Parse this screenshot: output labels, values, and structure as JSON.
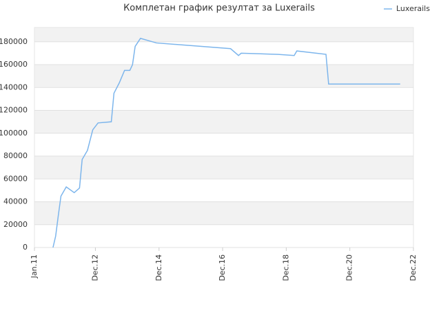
{
  "chart_data": {
    "type": "line",
    "title": "Комплетан график резултат за Luxerails",
    "x": [
      "2011-08",
      "2011-09",
      "2011-10",
      "2011-11",
      "2012-01",
      "2012-04",
      "2012-06",
      "2012-07",
      "2012-09",
      "2012-11",
      "2013-01",
      "2013-06",
      "2013-07",
      "2013-09",
      "2013-11",
      "2014-01",
      "2014-02",
      "2014-03",
      "2014-05",
      "2014-11",
      "2017-03",
      "2017-06",
      "2017-07",
      "2018-09",
      "2019-03",
      "2019-04",
      "2020-03",
      "2020-04",
      "2022-07"
    ],
    "series": [
      {
        "name": "Luxerails",
        "color": "#7cb5ec",
        "values": [
          0,
          10000,
          28000,
          45000,
          53000,
          48000,
          52000,
          77000,
          85000,
          103000,
          109000,
          110000,
          135000,
          144000,
          155000,
          155000,
          160000,
          176000,
          183000,
          179000,
          174000,
          168000,
          170000,
          169000,
          168000,
          172000,
          169000,
          143000,
          143000
        ]
      }
    ],
    "xlim": [
      "2011-01",
      "2022-12"
    ],
    "xticks": [
      {
        "value": "2011-01",
        "label": "Jan.11"
      },
      {
        "value": "2012-12",
        "label": "Dec.12"
      },
      {
        "value": "2014-12",
        "label": "Dec.14"
      },
      {
        "value": "2016-12",
        "label": "Dec.16"
      },
      {
        "value": "2018-12",
        "label": "Dec.18"
      },
      {
        "value": "2020-12",
        "label": "Dec.20"
      },
      {
        "value": "2022-12",
        "label": "Dec.22"
      }
    ],
    "ylim": [
      0,
      192500
    ],
    "yticks": [
      0,
      20000,
      40000,
      60000,
      80000,
      100000,
      120000,
      140000,
      160000,
      180000
    ],
    "grid": true,
    "legend": "top-right"
  }
}
